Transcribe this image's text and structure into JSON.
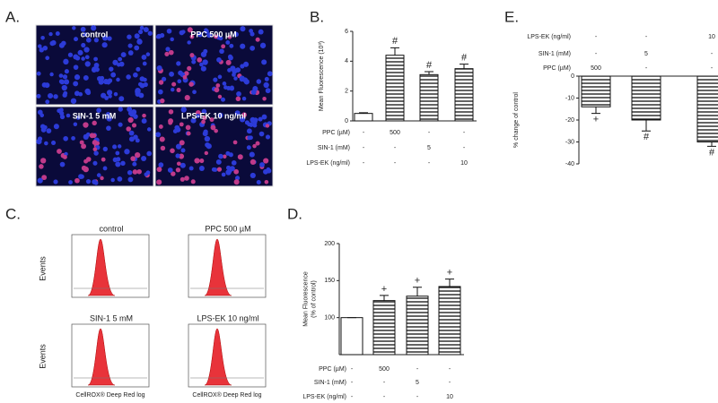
{
  "panel_labels": [
    "A.",
    "B.",
    "C.",
    "D.",
    "E."
  ],
  "images": {
    "labels": [
      "control",
      "PPC 500 µM",
      "SIN-1 5 mM",
      "LPS-EK 10 ng/ml"
    ]
  },
  "histograms": {
    "labels": [
      "control",
      "PPC 500 µM",
      "SIN-1 5 mM",
      "LPS-EK 10 ng/ml"
    ],
    "ylabel": "Events",
    "xlabel": "CellROX® Deep Red log"
  },
  "chart_data": [
    {
      "type": "bar",
      "ylabel": [
        "Mean Fluorescence (10³)"
      ],
      "categories": [
        null,
        null,
        null,
        null
      ],
      "values": [
        0.5,
        4.4,
        3.1,
        3.5
      ],
      "errors": [
        0.05,
        0.5,
        0.2,
        0.3
      ],
      "annotations": [
        null,
        "#",
        "#",
        "#"
      ],
      "bar_styles": [
        "open",
        "striped",
        "striped",
        "striped"
      ],
      "ylim": [
        0,
        6
      ],
      "yticks": [
        0,
        2,
        4,
        6
      ],
      "conditions": [
        {
          "label": "PPC  (µM)",
          "cells": [
            "-",
            "500",
            "-",
            "-"
          ]
        },
        {
          "label": "SIN-1 (mM)",
          "cells": [
            "-",
            "-",
            "5",
            "-"
          ]
        },
        {
          "label": "LPS-EK (ng/ml)",
          "cells": [
            "-",
            "-",
            "-",
            "10"
          ]
        }
      ]
    },
    {
      "type": "bar",
      "ylabel": [
        "Mean Fluorescence",
        "(% of control)"
      ],
      "categories": [
        null,
        null,
        null,
        null
      ],
      "values": [
        100,
        123,
        129,
        142
      ],
      "errors": [
        0,
        7,
        12,
        10
      ],
      "annotations": [
        null,
        "+",
        "+",
        "+"
      ],
      "bar_styles": [
        "open",
        "striped",
        "striped",
        "striped"
      ],
      "ylim": [
        50,
        200
      ],
      "yticks": [
        100,
        150,
        200
      ],
      "conditions": [
        {
          "label": "PPC  (µM)",
          "cells": [
            "-",
            "500",
            "-",
            "-"
          ]
        },
        {
          "label": "SIN-1 (mM)",
          "cells": [
            "-",
            "-",
            "5",
            "-"
          ]
        },
        {
          "label": "LPS-EK (ng/ml)",
          "cells": [
            "-",
            "-",
            "-",
            "10"
          ]
        }
      ]
    },
    {
      "type": "bar",
      "ylabel": [
        "% change of control"
      ],
      "categories": [
        null,
        null,
        null
      ],
      "values": [
        -14,
        -20,
        -30
      ],
      "errors": [
        3,
        5,
        2
      ],
      "annotations": [
        "+",
        "#",
        "#"
      ],
      "bar_styles": [
        "striped",
        "striped",
        "striped"
      ],
      "ylim": [
        -40,
        0
      ],
      "yticks": [
        0,
        -10,
        -20,
        -30,
        -40
      ],
      "conditions": [
        {
          "label": "LPS-EK (ng/ml)",
          "cells": [
            "-",
            "-",
            "10"
          ]
        },
        {
          "label": "SIN-1 (mM)",
          "cells": [
            "-",
            "5",
            "-"
          ]
        },
        {
          "label": "PPC  (µM)",
          "cells": [
            "500",
            "-",
            "-"
          ]
        }
      ]
    }
  ]
}
